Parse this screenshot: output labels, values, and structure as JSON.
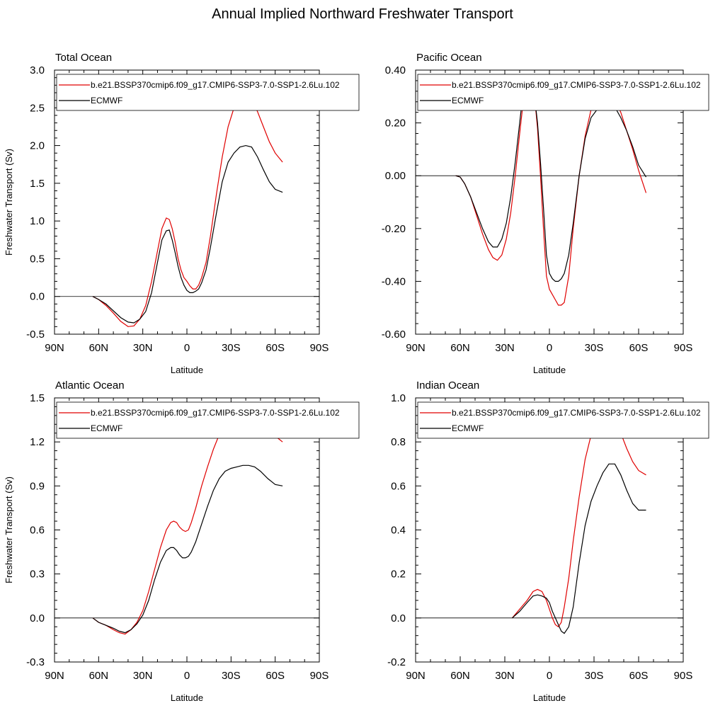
{
  "figure": {
    "title": "Annual Implied Northward Freshwater Transport"
  },
  "chart_data": [
    {
      "type": "line",
      "title": "Total Ocean",
      "xlabel": "Latitude",
      "ylabel": "Freshwater Transport (Sv)",
      "xlim": [
        -90,
        90
      ],
      "ylim": [
        -0.5,
        3.0
      ],
      "x_ticks": [
        -90,
        -60,
        -30,
        0,
        30,
        60,
        90
      ],
      "x_tick_labels": [
        "90N",
        "60N",
        "30N",
        "0",
        "30S",
        "60S",
        "90S"
      ],
      "y_ticks": [
        -0.5,
        0.0,
        0.5,
        1.0,
        1.5,
        2.0,
        2.5,
        3.0
      ],
      "y_tick_labels": [
        "-0.5",
        "0.0",
        "0.5",
        "1.0",
        "1.5",
        "2.0",
        "2.5",
        "3.0"
      ],
      "legend": "top-left",
      "zero_line": true,
      "series": [
        {
          "name": "b.e21.BSSP370cmip6.f09_g17.CMIP6-SSP3-7.0-SSP1-2.6Lu.102",
          "color": "#e00000",
          "x": [
            -64,
            -60,
            -55,
            -50,
            -45,
            -40,
            -36,
            -32,
            -28,
            -24,
            -20,
            -17,
            -14,
            -12,
            -10,
            -8,
            -6,
            -4,
            -2,
            0,
            2,
            4,
            6,
            8,
            10,
            13,
            16,
            20,
            24,
            28,
            32,
            36,
            40,
            44,
            48,
            52,
            56,
            60,
            65
          ],
          "y": [
            0.0,
            -0.04,
            -0.12,
            -0.22,
            -0.33,
            -0.4,
            -0.39,
            -0.3,
            -0.12,
            0.2,
            0.6,
            0.9,
            1.04,
            1.02,
            0.9,
            0.72,
            0.5,
            0.35,
            0.25,
            0.2,
            0.14,
            0.1,
            0.1,
            0.15,
            0.25,
            0.45,
            0.8,
            1.35,
            1.85,
            2.25,
            2.5,
            2.62,
            2.66,
            2.6,
            2.45,
            2.25,
            2.05,
            1.9,
            1.78
          ]
        },
        {
          "name": "ECMWF",
          "color": "#000000",
          "x": [
            -64,
            -60,
            -55,
            -50,
            -45,
            -40,
            -36,
            -32,
            -28,
            -24,
            -20,
            -17,
            -14,
            -12,
            -10,
            -8,
            -6,
            -4,
            -2,
            0,
            2,
            4,
            6,
            8,
            10,
            13,
            16,
            20,
            24,
            28,
            32,
            36,
            40,
            44,
            48,
            52,
            56,
            60,
            65
          ],
          "y": [
            0.0,
            -0.04,
            -0.1,
            -0.19,
            -0.28,
            -0.34,
            -0.35,
            -0.3,
            -0.2,
            0.05,
            0.45,
            0.75,
            0.87,
            0.88,
            0.75,
            0.58,
            0.4,
            0.25,
            0.15,
            0.08,
            0.05,
            0.05,
            0.07,
            0.1,
            0.18,
            0.35,
            0.65,
            1.1,
            1.52,
            1.78,
            1.9,
            1.98,
            2.0,
            1.98,
            1.85,
            1.68,
            1.52,
            1.42,
            1.38
          ]
        }
      ]
    },
    {
      "type": "line",
      "title": "Pacific Ocean",
      "xlabel": "Latitude",
      "ylabel": "",
      "xlim": [
        -90,
        90
      ],
      "ylim": [
        -0.6,
        0.4
      ],
      "x_ticks": [
        -90,
        -60,
        -30,
        0,
        30,
        60,
        90
      ],
      "x_tick_labels": [
        "90N",
        "60N",
        "30N",
        "0",
        "30S",
        "60S",
        "90S"
      ],
      "y_ticks": [
        -0.6,
        -0.4,
        -0.2,
        0.0,
        0.2,
        0.4
      ],
      "y_tick_labels": [
        "-0.60",
        "-0.40",
        "-0.20",
        "0.00",
        "0.20",
        "0.40"
      ],
      "legend": "top-left",
      "zero_line": true,
      "series": [
        {
          "name": "b.e21.BSSP370cmip6.f09_g17.CMIP6-SSP3-7.0-SSP1-2.6Lu.102",
          "color": "#e00000",
          "x": [
            -63,
            -60,
            -57,
            -53,
            -49,
            -45,
            -41,
            -38,
            -35,
            -32,
            -29,
            -26,
            -23,
            -20,
            -18,
            -16,
            -15,
            -14,
            -12,
            -10,
            -8,
            -6,
            -4,
            -2,
            0,
            2,
            4,
            6,
            8,
            10,
            13,
            16,
            20,
            24,
            28,
            32,
            36,
            40,
            44,
            48,
            52,
            56,
            60,
            65
          ],
          "y": [
            0.0,
            -0.005,
            -0.03,
            -0.08,
            -0.15,
            -0.22,
            -0.28,
            -0.31,
            -0.32,
            -0.3,
            -0.24,
            -0.14,
            0.0,
            0.16,
            0.26,
            0.32,
            0.34,
            0.35,
            0.34,
            0.3,
            0.18,
            0.0,
            -0.2,
            -0.38,
            -0.43,
            -0.45,
            -0.47,
            -0.49,
            -0.49,
            -0.48,
            -0.38,
            -0.2,
            0.0,
            0.15,
            0.25,
            0.3,
            0.31,
            0.31,
            0.29,
            0.24,
            0.17,
            0.1,
            0.02,
            -0.065
          ]
        },
        {
          "name": "ECMWF",
          "color": "#000000",
          "x": [
            -63,
            -60,
            -57,
            -53,
            -49,
            -45,
            -41,
            -38,
            -35,
            -32,
            -29,
            -26,
            -23,
            -20,
            -18,
            -16,
            -15,
            -14,
            -12,
            -10,
            -8,
            -6,
            -4,
            -2,
            0,
            2,
            4,
            6,
            8,
            10,
            13,
            16,
            20,
            24,
            28,
            32,
            36,
            40,
            44,
            48,
            52,
            56,
            60,
            65
          ],
          "y": [
            0.0,
            -0.005,
            -0.03,
            -0.08,
            -0.14,
            -0.2,
            -0.25,
            -0.27,
            -0.27,
            -0.24,
            -0.18,
            -0.08,
            0.05,
            0.2,
            0.3,
            0.35,
            0.37,
            0.37,
            0.35,
            0.3,
            0.2,
            0.05,
            -0.12,
            -0.3,
            -0.37,
            -0.39,
            -0.4,
            -0.4,
            -0.39,
            -0.37,
            -0.3,
            -0.18,
            0.0,
            0.14,
            0.22,
            0.25,
            0.27,
            0.27,
            0.26,
            0.22,
            0.17,
            0.11,
            0.04,
            -0.005
          ]
        }
      ]
    },
    {
      "type": "line",
      "title": "Atlantic Ocean",
      "xlabel": "Latitude",
      "ylabel": "Freshwater Transport (Sv)",
      "xlim": [
        -90,
        90
      ],
      "ylim": [
        -0.3,
        1.5
      ],
      "x_ticks": [
        -90,
        -60,
        -30,
        0,
        30,
        60,
        90
      ],
      "x_tick_labels": [
        "90N",
        "60N",
        "30N",
        "0",
        "30S",
        "60S",
        "90S"
      ],
      "y_ticks": [
        -0.3,
        0.0,
        0.3,
        0.6,
        0.9,
        1.2,
        1.5
      ],
      "y_tick_labels": [
        "-0.3",
        "0.0",
        "0.3",
        "0.6",
        "0.9",
        "1.2",
        "1.5"
      ],
      "legend": "top-left",
      "zero_line": true,
      "series": [
        {
          "name": "b.e21.BSSP370cmip6.f09_g17.CMIP6-SSP3-7.0-SSP1-2.6Lu.102",
          "color": "#e00000",
          "x": [
            -64,
            -60,
            -55,
            -50,
            -46,
            -42,
            -38,
            -34,
            -30,
            -26,
            -22,
            -18,
            -14,
            -11,
            -9,
            -7,
            -5,
            -3,
            -1,
            1,
            3,
            6,
            10,
            14,
            18,
            22,
            26,
            30,
            34,
            38,
            42,
            46,
            50,
            55,
            60,
            65
          ],
          "y": [
            0.0,
            -0.03,
            -0.05,
            -0.08,
            -0.1,
            -0.11,
            -0.08,
            -0.03,
            0.05,
            0.18,
            0.33,
            0.48,
            0.6,
            0.65,
            0.66,
            0.65,
            0.62,
            0.6,
            0.59,
            0.6,
            0.65,
            0.75,
            0.9,
            1.03,
            1.15,
            1.25,
            1.33,
            1.38,
            1.41,
            1.42,
            1.41,
            1.38,
            1.33,
            1.28,
            1.24,
            1.2
          ]
        },
        {
          "name": "ECMWF",
          "color": "#000000",
          "x": [
            -64,
            -60,
            -55,
            -50,
            -46,
            -42,
            -38,
            -34,
            -30,
            -26,
            -22,
            -18,
            -14,
            -11,
            -9,
            -7,
            -5,
            -3,
            -1,
            1,
            3,
            6,
            10,
            14,
            18,
            22,
            26,
            30,
            34,
            38,
            42,
            46,
            50,
            55,
            60,
            65
          ],
          "y": [
            0.0,
            -0.03,
            -0.05,
            -0.07,
            -0.09,
            -0.1,
            -0.08,
            -0.04,
            0.02,
            0.12,
            0.26,
            0.38,
            0.46,
            0.48,
            0.48,
            0.46,
            0.43,
            0.41,
            0.41,
            0.42,
            0.45,
            0.52,
            0.64,
            0.76,
            0.87,
            0.95,
            1.0,
            1.02,
            1.03,
            1.04,
            1.04,
            1.03,
            1.0,
            0.95,
            0.91,
            0.9
          ]
        }
      ]
    },
    {
      "type": "line",
      "title": "Indian Ocean",
      "xlabel": "Latitude",
      "ylabel": "",
      "xlim": [
        -90,
        90
      ],
      "ylim": [
        -0.2,
        1.0
      ],
      "x_ticks": [
        -90,
        -60,
        -30,
        0,
        30,
        60,
        90
      ],
      "x_tick_labels": [
        "90N",
        "60N",
        "30N",
        "0",
        "30S",
        "60S",
        "90S"
      ],
      "y_ticks": [
        -0.2,
        0.0,
        0.2,
        0.4,
        0.6,
        0.8,
        1.0
      ],
      "y_tick_labels": [
        "-0.2",
        "0.0",
        "0.2",
        "0.4",
        "0.6",
        "0.8",
        "1.0"
      ],
      "legend": "top-left",
      "zero_line": true,
      "series": [
        {
          "name": "b.e21.BSSP370cmip6.f09_g17.CMIP6-SSP3-7.0-SSP1-2.6Lu.102",
          "color": "#e00000",
          "x": [
            -25,
            -20,
            -15,
            -11,
            -8,
            -5,
            -2,
            0,
            2,
            4,
            6,
            8,
            10,
            13,
            16,
            20,
            24,
            28,
            32,
            36,
            40,
            44,
            48,
            52,
            56,
            60,
            65
          ],
          "y": [
            0.0,
            0.04,
            0.08,
            0.12,
            0.13,
            0.12,
            0.08,
            0.04,
            0.0,
            -0.03,
            -0.04,
            -0.02,
            0.05,
            0.18,
            0.35,
            0.55,
            0.72,
            0.83,
            0.9,
            0.93,
            0.94,
            0.9,
            0.84,
            0.77,
            0.71,
            0.67,
            0.65
          ]
        },
        {
          "name": "ECMWF",
          "color": "#000000",
          "x": [
            -25,
            -20,
            -15,
            -11,
            -8,
            -5,
            -2,
            0,
            2,
            4,
            6,
            8,
            10,
            13,
            16,
            20,
            24,
            28,
            32,
            36,
            40,
            44,
            48,
            52,
            56,
            60,
            65
          ],
          "y": [
            0.0,
            0.03,
            0.07,
            0.1,
            0.105,
            0.1,
            0.09,
            0.07,
            0.03,
            0.0,
            -0.03,
            -0.06,
            -0.07,
            -0.04,
            0.05,
            0.25,
            0.42,
            0.53,
            0.6,
            0.66,
            0.7,
            0.7,
            0.65,
            0.58,
            0.52,
            0.49,
            0.49
          ]
        }
      ]
    }
  ]
}
